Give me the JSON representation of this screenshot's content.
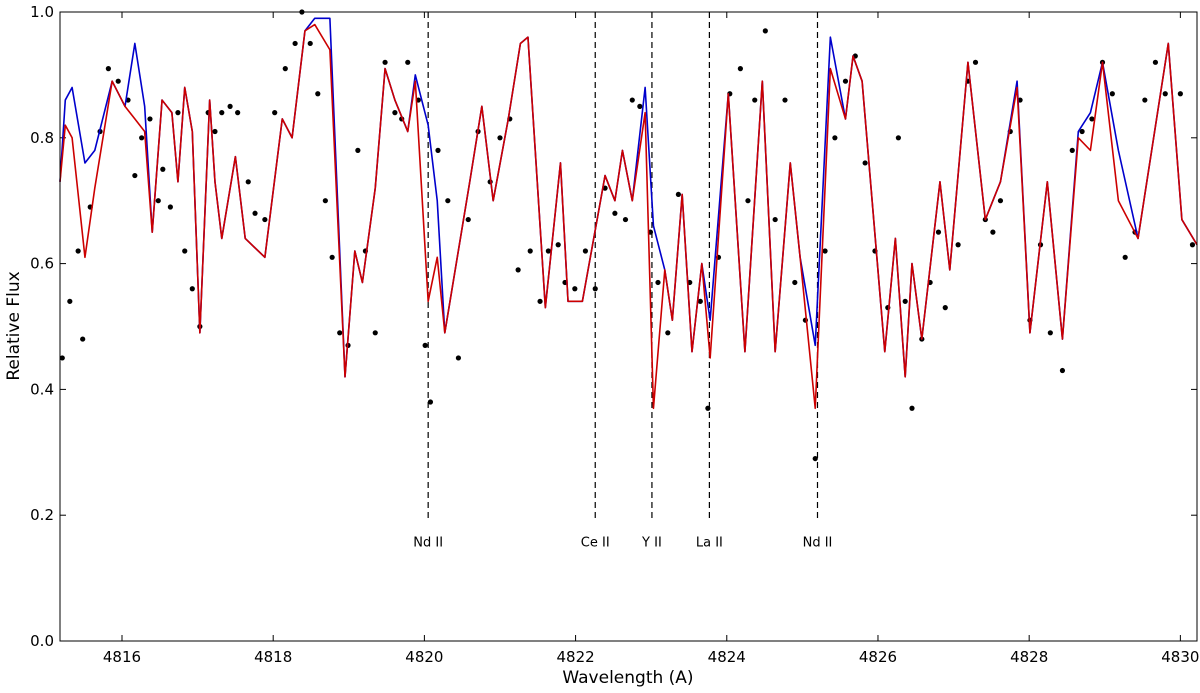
{
  "chart_data": {
    "type": "line",
    "xlabel": "Wavelength (A)",
    "ylabel": "Relative Flux",
    "xlim": [
      4815.18,
      4830.22
    ],
    "ylim": [
      0,
      1
    ],
    "xticks": [
      4816,
      4818,
      4820,
      4822,
      4824,
      4826,
      4828,
      4830
    ],
    "yticks": [
      {
        "value": 0,
        "label": "0.0"
      },
      {
        "value": 0.2,
        "label": "0.2"
      },
      {
        "value": 0.4,
        "label": "0.4"
      },
      {
        "value": 0.6,
        "label": "0.6"
      },
      {
        "value": 0.8,
        "label": "0.8"
      },
      {
        "value": 1,
        "label": "1.0"
      }
    ],
    "annotations": [
      {
        "text": "Nd II",
        "x": 4820.05
      },
      {
        "text": "Ce II",
        "x": 4822.26
      },
      {
        "text": "Y II",
        "x": 4823.01
      },
      {
        "text": "La II",
        "x": 4823.77
      },
      {
        "text": "Nd II",
        "x": 4825.2
      }
    ],
    "series": [
      {
        "style": "markers",
        "color": "#000000",
        "x": [
          4815.21,
          4815.31,
          4815.42,
          4815.48,
          4815.58,
          4815.71,
          4815.82,
          4815.95,
          4816.08,
          4816.17,
          4816.26,
          4816.37,
          4816.48,
          4816.54,
          4816.64,
          4816.74,
          4816.83,
          4816.93,
          4817.03,
          4817.14,
          4817.23,
          4817.32,
          4817.43,
          4817.53,
          4817.67,
          4817.76,
          4817.89,
          4818.02,
          4818.16,
          4818.29,
          4818.38,
          4818.49,
          4818.59,
          4818.69,
          4818.78,
          4818.88,
          4818.99,
          4819.12,
          4819.22,
          4819.35,
          4819.48,
          4819.61,
          4819.7,
          4819.78,
          4819.92,
          4820.01,
          4820.08,
          4820.18,
          4820.31,
          4820.45,
          4820.58,
          4820.71,
          4820.87,
          4821.0,
          4821.13,
          4821.24,
          4821.4,
          4821.53,
          4821.64,
          4821.77,
          4821.86,
          4821.99,
          4822.13,
          4822.26,
          4822.39,
          4822.52,
          4822.66,
          4822.75,
          4822.85,
          4822.99,
          4823.09,
          4823.22,
          4823.36,
          4823.51,
          4823.65,
          4823.75,
          4823.89,
          4824.04,
          4824.18,
          4824.28,
          4824.37,
          4824.51,
          4824.64,
          4824.77,
          4824.9,
          4825.04,
          4825.17,
          4825.3,
          4825.43,
          4825.57,
          4825.7,
          4825.83,
          4825.96,
          4826.13,
          4826.27,
          4826.36,
          4826.45,
          4826.58,
          4826.69,
          4826.8,
          4826.89,
          4827.06,
          4827.19,
          4827.29,
          4827.42,
          4827.52,
          4827.62,
          4827.75,
          4827.88,
          4828.01,
          4828.15,
          4828.28,
          4828.44,
          4828.57,
          4828.7,
          4828.83,
          4828.97,
          4829.1,
          4829.27,
          4829.4,
          4829.53,
          4829.67,
          4829.8,
          4830.0,
          4830.16
        ],
        "values": [
          0.45,
          0.54,
          0.62,
          0.48,
          0.69,
          0.81,
          0.91,
          0.89,
          0.86,
          0.74,
          0.8,
          0.83,
          0.7,
          0.75,
          0.69,
          0.84,
          0.62,
          0.56,
          0.5,
          0.84,
          0.81,
          0.84,
          0.85,
          0.84,
          0.73,
          0.68,
          0.67,
          0.84,
          0.91,
          0.95,
          1.0,
          0.95,
          0.87,
          0.7,
          0.61,
          0.49,
          0.47,
          0.78,
          0.62,
          0.49,
          0.92,
          0.84,
          0.83,
          0.92,
          0.86,
          0.47,
          0.38,
          0.78,
          0.7,
          0.45,
          0.67,
          0.81,
          0.73,
          0.8,
          0.83,
          0.59,
          0.62,
          0.54,
          0.62,
          0.63,
          0.57,
          0.56,
          0.62,
          0.56,
          0.72,
          0.68,
          0.67,
          0.86,
          0.85,
          0.65,
          0.57,
          0.49,
          0.71,
          0.57,
          0.54,
          0.37,
          0.61,
          0.87,
          0.91,
          0.7,
          0.86,
          0.97,
          0.67,
          0.86,
          0.57,
          0.51,
          0.29,
          0.62,
          0.8,
          0.89,
          0.93,
          0.76,
          0.62,
          0.53,
          0.8,
          0.54,
          0.37,
          0.48,
          0.57,
          0.65,
          0.53,
          0.63,
          0.89,
          0.92,
          0.67,
          0.65,
          0.7,
          0.81,
          0.86,
          0.51,
          0.63,
          0.49,
          0.43,
          0.78,
          0.81,
          0.83,
          0.92,
          0.87,
          0.61,
          0.65,
          0.86,
          0.92,
          0.87,
          0.87,
          0.63
        ]
      },
      {
        "style": "line",
        "color": "#0000cc",
        "x": [
          4815.18,
          4815.25,
          4815.34,
          4815.51,
          4815.64,
          4815.87,
          4816.04,
          4816.17,
          4816.3,
          4816.4,
          4816.53,
          4816.66,
          4816.74,
          4816.83,
          4816.93,
          4817.03,
          4817.16,
          4817.23,
          4817.32,
          4817.5,
          4817.63,
          4817.89,
          4818.12,
          4818.25,
          4818.42,
          4818.55,
          4818.75,
          4818.95,
          4819.08,
          4819.18,
          4819.35,
          4819.48,
          4819.61,
          4819.78,
          4819.88,
          4820.05,
          4820.17,
          4820.27,
          4820.6,
          4820.76,
          4820.91,
          4821.11,
          4821.27,
          4821.37,
          4821.6,
          4821.8,
          4821.9,
          4822.09,
          4822.39,
          4822.52,
          4822.62,
          4822.75,
          4822.92,
          4823.03,
          4823.18,
          4823.28,
          4823.41,
          4823.54,
          4823.67,
          4823.78,
          4824.02,
          4824.24,
          4824.47,
          4824.64,
          4824.84,
          4824.97,
          4825.17,
          4825.37,
          4825.57,
          4825.67,
          4825.79,
          4826.09,
          4826.23,
          4826.36,
          4826.45,
          4826.58,
          4826.82,
          4826.95,
          4827.19,
          4827.42,
          4827.62,
          4827.84,
          4828.01,
          4828.24,
          4828.44,
          4828.65,
          4828.81,
          4828.97,
          4829.18,
          4829.44,
          4829.84,
          4830.02,
          4830.22
        ],
        "values": [
          0.73,
          0.86,
          0.88,
          0.76,
          0.78,
          0.89,
          0.85,
          0.95,
          0.85,
          0.65,
          0.86,
          0.84,
          0.73,
          0.88,
          0.81,
          0.49,
          0.86,
          0.73,
          0.64,
          0.77,
          0.64,
          0.61,
          0.83,
          0.8,
          0.97,
          0.99,
          0.99,
          0.42,
          0.62,
          0.57,
          0.72,
          0.91,
          0.86,
          0.81,
          0.9,
          0.82,
          0.7,
          0.49,
          0.73,
          0.85,
          0.7,
          0.83,
          0.95,
          0.96,
          0.53,
          0.76,
          0.54,
          0.54,
          0.74,
          0.7,
          0.78,
          0.7,
          0.88,
          0.66,
          0.59,
          0.51,
          0.71,
          0.46,
          0.6,
          0.51,
          0.87,
          0.46,
          0.89,
          0.46,
          0.76,
          0.61,
          0.47,
          0.96,
          0.83,
          0.93,
          0.89,
          0.46,
          0.64,
          0.42,
          0.6,
          0.48,
          0.73,
          0.59,
          0.92,
          0.67,
          0.73,
          0.89,
          0.49,
          0.73,
          0.48,
          0.81,
          0.84,
          0.92,
          0.78,
          0.64,
          0.95,
          0.67,
          0.63
        ]
      },
      {
        "style": "line",
        "color": "#cc0000",
        "x": [
          4815.18,
          4815.25,
          4815.34,
          4815.51,
          4815.64,
          4815.87,
          4816.04,
          4816.17,
          4816.3,
          4816.4,
          4816.53,
          4816.66,
          4816.74,
          4816.83,
          4816.93,
          4817.03,
          4817.16,
          4817.23,
          4817.32,
          4817.5,
          4817.63,
          4817.89,
          4818.12,
          4818.25,
          4818.42,
          4818.55,
          4818.75,
          4818.95,
          4819.08,
          4819.18,
          4819.35,
          4819.48,
          4819.61,
          4819.78,
          4819.88,
          4820.05,
          4820.17,
          4820.27,
          4820.6,
          4820.76,
          4820.91,
          4821.11,
          4821.27,
          4821.37,
          4821.6,
          4821.8,
          4821.9,
          4822.09,
          4822.39,
          4822.52,
          4822.62,
          4822.75,
          4822.92,
          4823.03,
          4823.18,
          4823.28,
          4823.41,
          4823.54,
          4823.67,
          4823.78,
          4824.02,
          4824.24,
          4824.47,
          4824.64,
          4824.84,
          4824.97,
          4825.17,
          4825.37,
          4825.57,
          4825.67,
          4825.79,
          4826.09,
          4826.23,
          4826.36,
          4826.45,
          4826.58,
          4826.82,
          4826.95,
          4827.19,
          4827.42,
          4827.62,
          4827.84,
          4828.01,
          4828.24,
          4828.44,
          4828.65,
          4828.81,
          4828.97,
          4829.18,
          4829.44,
          4829.84,
          4830.02,
          4830.22
        ],
        "values": [
          0.73,
          0.82,
          0.8,
          0.61,
          0.72,
          0.89,
          0.85,
          0.83,
          0.81,
          0.65,
          0.86,
          0.84,
          0.73,
          0.88,
          0.81,
          0.49,
          0.86,
          0.73,
          0.64,
          0.77,
          0.64,
          0.61,
          0.83,
          0.8,
          0.97,
          0.98,
          0.94,
          0.42,
          0.62,
          0.57,
          0.72,
          0.91,
          0.86,
          0.81,
          0.89,
          0.54,
          0.61,
          0.49,
          0.73,
          0.85,
          0.7,
          0.83,
          0.95,
          0.96,
          0.53,
          0.76,
          0.54,
          0.54,
          0.74,
          0.7,
          0.78,
          0.7,
          0.84,
          0.37,
          0.59,
          0.51,
          0.71,
          0.46,
          0.6,
          0.45,
          0.87,
          0.46,
          0.89,
          0.46,
          0.76,
          0.61,
          0.37,
          0.91,
          0.83,
          0.93,
          0.89,
          0.46,
          0.64,
          0.42,
          0.6,
          0.48,
          0.73,
          0.59,
          0.92,
          0.67,
          0.73,
          0.88,
          0.49,
          0.73,
          0.48,
          0.8,
          0.78,
          0.92,
          0.7,
          0.64,
          0.95,
          0.67,
          0.63
        ]
      }
    ]
  }
}
